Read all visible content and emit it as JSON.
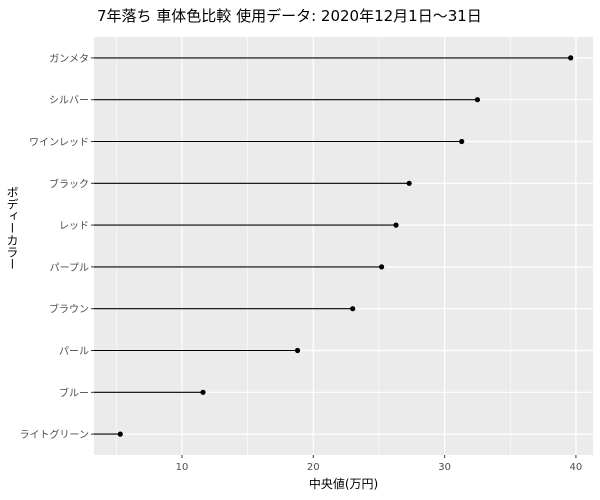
{
  "chart_data": {
    "type": "lollipop",
    "title": "7年落ち 車体色比較 使用データ: 2020年12月1日〜31日",
    "xlabel": "中央値(万円)",
    "ylabel": "ボディーカラー",
    "xlim": [
      3.3,
      41.3
    ],
    "xticks": [
      10,
      20,
      30,
      40
    ],
    "orientation": "horizontal",
    "grid": true,
    "background": "#ebebeb",
    "grid_color": "#ffffff",
    "mark_color": "#000000",
    "categories": [
      "ガンメタ",
      "シルバー",
      "ワインレッド",
      "ブラック",
      "レッド",
      "パープル",
      "ブラウン",
      "パール",
      "ブルー",
      "ライトグリーン"
    ],
    "values": [
      39.6,
      32.5,
      31.3,
      27.3,
      26.3,
      25.2,
      23.0,
      18.8,
      11.6,
      5.3
    ]
  }
}
